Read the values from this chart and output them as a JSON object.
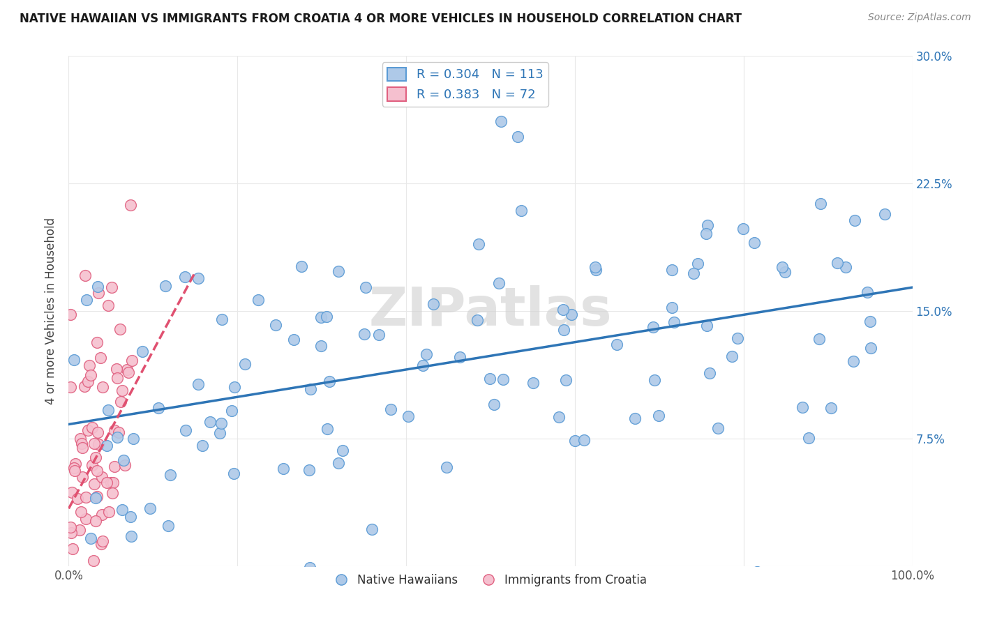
{
  "title": "NATIVE HAWAIIAN VS IMMIGRANTS FROM CROATIA 4 OR MORE VEHICLES IN HOUSEHOLD CORRELATION CHART",
  "source": "Source: ZipAtlas.com",
  "ylabel": "4 or more Vehicles in Household",
  "xlim": [
    0,
    1.0
  ],
  "ylim": [
    0,
    0.3
  ],
  "blue_color": "#aec9e8",
  "blue_edge": "#5b9bd5",
  "pink_color": "#f5c0cf",
  "pink_edge": "#e06080",
  "blue_line_color": "#2e75b6",
  "pink_line_color": "#e05070",
  "tick_color": "#2e75b6",
  "legend_blue_label": "Native Hawaiians",
  "legend_pink_label": "Immigrants from Croatia",
  "R_blue": 0.304,
  "N_blue": 113,
  "R_pink": 0.383,
  "N_pink": 72,
  "blue_seed": 42,
  "pink_seed": 15,
  "watermark": "ZIPatlas",
  "background_color": "#ffffff",
  "grid_color": "#e8e8e8"
}
